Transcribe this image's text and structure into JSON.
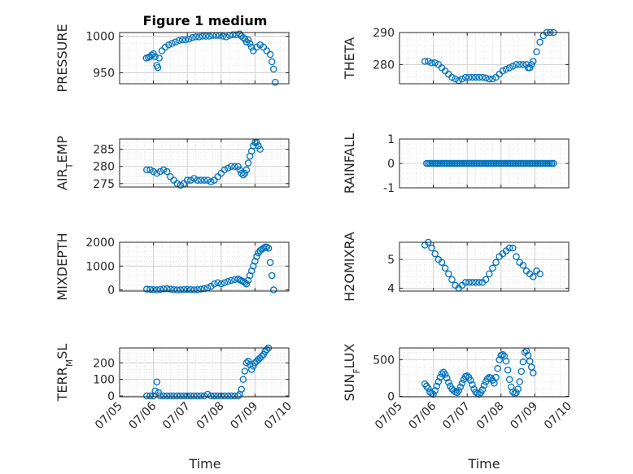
{
  "figure": {
    "title": "Figure 1 medium",
    "x_axis_label": "Time",
    "marker_color": "#0072BD",
    "marker": "open-circle"
  },
  "chart_data": [
    {
      "type": "scatter",
      "name": "pressure",
      "ylabel": "PRESSURE",
      "ylim": [
        935,
        1005
      ],
      "yticks": [
        950,
        1000
      ],
      "xlim": [
        5,
        10
      ],
      "xticks": [],
      "grid": true,
      "points": [
        [
          5.79,
          970
        ],
        [
          5.85,
          971
        ],
        [
          5.9,
          972
        ],
        [
          5.95,
          974
        ],
        [
          6.0,
          976
        ],
        [
          6.05,
          972
        ],
        [
          6.1,
          960
        ],
        [
          6.13,
          957
        ],
        [
          6.17,
          970
        ],
        [
          6.25,
          980
        ],
        [
          6.35,
          985
        ],
        [
          6.45,
          988
        ],
        [
          6.55,
          990
        ],
        [
          6.65,
          992
        ],
        [
          6.75,
          994
        ],
        [
          6.85,
          995
        ],
        [
          6.95,
          995
        ],
        [
          7.05,
          996
        ],
        [
          7.15,
          998
        ],
        [
          7.25,
          999
        ],
        [
          7.35,
          999
        ],
        [
          7.45,
          1000
        ],
        [
          7.55,
          1000
        ],
        [
          7.65,
          1000
        ],
        [
          7.75,
          1001
        ],
        [
          7.85,
          1001
        ],
        [
          7.95,
          1001
        ],
        [
          8.05,
          1000
        ],
        [
          8.15,
          999
        ],
        [
          8.25,
          1001
        ],
        [
          8.35,
          1002
        ],
        [
          8.45,
          1002
        ],
        [
          8.55,
          1003
        ],
        [
          8.6,
          1000
        ],
        [
          8.65,
          998
        ],
        [
          8.7,
          996
        ],
        [
          8.75,
          992
        ],
        [
          8.8,
          995
        ],
        [
          8.85,
          990
        ],
        [
          8.9,
          985
        ],
        [
          8.95,
          980
        ],
        [
          9.05,
          985
        ],
        [
          9.15,
          988
        ],
        [
          9.25,
          985
        ],
        [
          9.35,
          980
        ],
        [
          9.45,
          975
        ],
        [
          9.5,
          965
        ],
        [
          9.55,
          955
        ],
        [
          9.6,
          937
        ]
      ]
    },
    {
      "type": "scatter",
      "name": "theta",
      "ylabel": "THETA",
      "ylim": [
        274,
        290
      ],
      "yticks": [
        280,
        290
      ],
      "xlim": [
        5,
        10
      ],
      "xticks": [],
      "grid": true,
      "points": [
        [
          5.75,
          281
        ],
        [
          5.85,
          281
        ],
        [
          5.95,
          280.5
        ],
        [
          6.05,
          280.5
        ],
        [
          6.15,
          280
        ],
        [
          6.25,
          279
        ],
        [
          6.35,
          278
        ],
        [
          6.45,
          277
        ],
        [
          6.55,
          276
        ],
        [
          6.65,
          275.5
        ],
        [
          6.75,
          275
        ],
        [
          6.85,
          275.5
        ],
        [
          6.95,
          276
        ],
        [
          7.05,
          276
        ],
        [
          7.15,
          276
        ],
        [
          7.25,
          276
        ],
        [
          7.35,
          276
        ],
        [
          7.45,
          276
        ],
        [
          7.55,
          275.8
        ],
        [
          7.65,
          275.5
        ],
        [
          7.75,
          275.5
        ],
        [
          7.85,
          276
        ],
        [
          7.95,
          277
        ],
        [
          8.05,
          278
        ],
        [
          8.15,
          278.5
        ],
        [
          8.25,
          279
        ],
        [
          8.35,
          279.5
        ],
        [
          8.45,
          280
        ],
        [
          8.55,
          280
        ],
        [
          8.65,
          280
        ],
        [
          8.75,
          280
        ],
        [
          8.8,
          279
        ],
        [
          8.85,
          279
        ],
        [
          8.9,
          280
        ],
        [
          8.95,
          281
        ],
        [
          9.05,
          284
        ],
        [
          9.15,
          287
        ],
        [
          9.25,
          289
        ],
        [
          9.35,
          290
        ],
        [
          9.45,
          290
        ],
        [
          9.55,
          290
        ]
      ]
    },
    {
      "type": "scatter",
      "name": "air-temp",
      "ylabel": "AIR_TEMP",
      "ylim": [
        274,
        288
      ],
      "yticks": [
        275,
        280,
        285
      ],
      "xlim": [
        5,
        10
      ],
      "xticks": [],
      "grid": true,
      "points": [
        [
          5.8,
          279
        ],
        [
          5.9,
          279
        ],
        [
          6.0,
          278.5
        ],
        [
          6.1,
          278
        ],
        [
          6.2,
          278.5
        ],
        [
          6.3,
          279
        ],
        [
          6.4,
          278.5
        ],
        [
          6.5,
          277
        ],
        [
          6.6,
          276
        ],
        [
          6.7,
          275
        ],
        [
          6.8,
          274.5
        ],
        [
          6.9,
          275
        ],
        [
          7.0,
          276
        ],
        [
          7.1,
          276
        ],
        [
          7.2,
          276.5
        ],
        [
          7.3,
          276
        ],
        [
          7.4,
          276
        ],
        [
          7.5,
          276
        ],
        [
          7.6,
          276
        ],
        [
          7.7,
          275.5
        ],
        [
          7.8,
          276
        ],
        [
          7.9,
          277
        ],
        [
          8.0,
          278
        ],
        [
          8.1,
          279
        ],
        [
          8.2,
          279.5
        ],
        [
          8.3,
          280
        ],
        [
          8.4,
          280
        ],
        [
          8.5,
          280
        ],
        [
          8.55,
          279
        ],
        [
          8.6,
          278
        ],
        [
          8.65,
          277.5
        ],
        [
          8.7,
          278
        ],
        [
          8.75,
          279
        ],
        [
          8.8,
          281
        ],
        [
          8.85,
          283
        ],
        [
          8.9,
          284.5
        ],
        [
          8.95,
          286
        ],
        [
          9.0,
          287
        ],
        [
          9.05,
          287
        ],
        [
          9.1,
          286
        ],
        [
          9.15,
          285
        ]
      ]
    },
    {
      "type": "scatter",
      "name": "rainfall",
      "ylabel": "RAINFALL",
      "ylim": [
        -1,
        1
      ],
      "yticks": [
        -1,
        0,
        1
      ],
      "xlim": [
        5,
        10
      ],
      "xticks": [],
      "grid": true,
      "constant": {
        "x_start": 5.8,
        "x_end": 9.55,
        "step": 0.05,
        "y": 0
      }
    },
    {
      "type": "scatter",
      "name": "mixdepth",
      "ylabel": "MIXDEPTH",
      "ylim": [
        -50,
        2000
      ],
      "yticks": [
        0,
        1000,
        2000
      ],
      "xlim": [
        5,
        10
      ],
      "xticks": [],
      "grid": true,
      "points": [
        [
          5.8,
          30
        ],
        [
          5.9,
          20
        ],
        [
          6.0,
          10
        ],
        [
          6.1,
          0
        ],
        [
          6.2,
          20
        ],
        [
          6.3,
          40
        ],
        [
          6.4,
          50
        ],
        [
          6.5,
          30
        ],
        [
          6.6,
          10
        ],
        [
          6.7,
          0
        ],
        [
          6.8,
          0
        ],
        [
          6.9,
          10
        ],
        [
          7.0,
          20
        ],
        [
          7.1,
          10
        ],
        [
          7.2,
          0
        ],
        [
          7.3,
          10
        ],
        [
          7.4,
          30
        ],
        [
          7.5,
          50
        ],
        [
          7.6,
          80
        ],
        [
          7.7,
          150
        ],
        [
          7.8,
          250
        ],
        [
          7.9,
          300
        ],
        [
          8.0,
          250
        ],
        [
          8.1,
          300
        ],
        [
          8.2,
          350
        ],
        [
          8.3,
          400
        ],
        [
          8.4,
          430
        ],
        [
          8.5,
          460
        ],
        [
          8.55,
          420
        ],
        [
          8.6,
          380
        ],
        [
          8.65,
          350
        ],
        [
          8.7,
          300
        ],
        [
          8.75,
          250
        ],
        [
          8.8,
          400
        ],
        [
          8.85,
          600
        ],
        [
          8.9,
          800
        ],
        [
          8.95,
          1000
        ],
        [
          9.0,
          1200
        ],
        [
          9.05,
          1400
        ],
        [
          9.1,
          1550
        ],
        [
          9.15,
          1650
        ],
        [
          9.2,
          1700
        ],
        [
          9.25,
          1750
        ],
        [
          9.3,
          1800
        ],
        [
          9.35,
          1800
        ],
        [
          9.4,
          1750
        ],
        [
          9.45,
          1150
        ],
        [
          9.5,
          600
        ],
        [
          9.55,
          0
        ]
      ]
    },
    {
      "type": "scatter",
      "name": "h2omixra",
      "ylabel": "H2OMIXRA",
      "ylim": [
        3.9,
        5.6
      ],
      "yticks": [
        4,
        5
      ],
      "xlim": [
        5,
        10
      ],
      "xticks": [],
      "grid": true,
      "points": [
        [
          5.75,
          5.5
        ],
        [
          5.85,
          5.6
        ],
        [
          5.95,
          5.4
        ],
        [
          6.05,
          5.2
        ],
        [
          6.15,
          5.0
        ],
        [
          6.25,
          4.9
        ],
        [
          6.35,
          4.7
        ],
        [
          6.45,
          4.5
        ],
        [
          6.55,
          4.3
        ],
        [
          6.65,
          4.1
        ],
        [
          6.75,
          4.0
        ],
        [
          6.85,
          4.1
        ],
        [
          6.95,
          4.2
        ],
        [
          7.05,
          4.2
        ],
        [
          7.15,
          4.2
        ],
        [
          7.25,
          4.2
        ],
        [
          7.35,
          4.2
        ],
        [
          7.45,
          4.2
        ],
        [
          7.55,
          4.3
        ],
        [
          7.65,
          4.5
        ],
        [
          7.75,
          4.7
        ],
        [
          7.85,
          4.9
        ],
        [
          7.95,
          5.1
        ],
        [
          8.05,
          5.2
        ],
        [
          8.15,
          5.3
        ],
        [
          8.25,
          5.4
        ],
        [
          8.35,
          5.4
        ],
        [
          8.45,
          5.1
        ],
        [
          8.55,
          4.9
        ],
        [
          8.65,
          4.8
        ],
        [
          8.75,
          4.6
        ],
        [
          8.85,
          4.5
        ],
        [
          8.95,
          4.4
        ],
        [
          9.05,
          4.6
        ],
        [
          9.15,
          4.5
        ]
      ]
    },
    {
      "type": "scatter",
      "name": "terr-msl",
      "ylabel": "TERR_MSL",
      "ylim": [
        -5,
        290
      ],
      "yticks": [
        0,
        100,
        200
      ],
      "xlim": [
        5,
        10
      ],
      "xticks": [
        "07/05",
        "07/06",
        "07/07",
        "07/08",
        "07/09",
        "07/10"
      ],
      "xticks_values": [
        5,
        6,
        7,
        8,
        9,
        10
      ],
      "xlabel": "Time",
      "grid": true,
      "points": [
        [
          5.8,
          0
        ],
        [
          5.9,
          0
        ],
        [
          6.0,
          0
        ],
        [
          6.05,
          30
        ],
        [
          6.1,
          85
        ],
        [
          6.15,
          20
        ],
        [
          6.2,
          0
        ],
        [
          6.3,
          0
        ],
        [
          6.4,
          0
        ],
        [
          6.5,
          0
        ],
        [
          6.6,
          0
        ],
        [
          6.7,
          0
        ],
        [
          6.8,
          0
        ],
        [
          6.9,
          0
        ],
        [
          7.0,
          0
        ],
        [
          7.1,
          0
        ],
        [
          7.2,
          0
        ],
        [
          7.3,
          0
        ],
        [
          7.4,
          0
        ],
        [
          7.5,
          0
        ],
        [
          7.6,
          10
        ],
        [
          7.7,
          0
        ],
        [
          7.8,
          0
        ],
        [
          7.9,
          0
        ],
        [
          8.0,
          0
        ],
        [
          8.1,
          0
        ],
        [
          8.2,
          0
        ],
        [
          8.3,
          0
        ],
        [
          8.4,
          0
        ],
        [
          8.5,
          0
        ],
        [
          8.55,
          10
        ],
        [
          8.6,
          40
        ],
        [
          8.65,
          100
        ],
        [
          8.7,
          150
        ],
        [
          8.75,
          200
        ],
        [
          8.8,
          210
        ],
        [
          8.85,
          190
        ],
        [
          8.9,
          160
        ],
        [
          8.95,
          180
        ],
        [
          9.0,
          200
        ],
        [
          9.05,
          210
        ],
        [
          9.1,
          220
        ],
        [
          9.15,
          230
        ],
        [
          9.2,
          240
        ],
        [
          9.25,
          250
        ],
        [
          9.3,
          270
        ],
        [
          9.35,
          280
        ],
        [
          9.4,
          290
        ]
      ]
    },
    {
      "type": "scatter",
      "name": "sun-flux",
      "ylabel": "SUN_FLUX",
      "ylim": [
        -5,
        660
      ],
      "yticks": [
        0,
        500
      ],
      "xlim": [
        5,
        10
      ],
      "xticks": [
        "07/05",
        "07/06",
        "07/07",
        "07/08",
        "07/09",
        "07/10"
      ],
      "xticks_values": [
        5,
        6,
        7,
        8,
        9,
        10
      ],
      "xlabel": "Time",
      "grid": true,
      "points": [
        [
          5.75,
          170
        ],
        [
          5.8,
          140
        ],
        [
          5.85,
          110
        ],
        [
          5.9,
          60
        ],
        [
          5.95,
          40
        ],
        [
          6.0,
          30
        ],
        [
          6.05,
          80
        ],
        [
          6.1,
          140
        ],
        [
          6.15,
          200
        ],
        [
          6.2,
          260
        ],
        [
          6.25,
          310
        ],
        [
          6.3,
          330
        ],
        [
          6.35,
          300
        ],
        [
          6.4,
          250
        ],
        [
          6.45,
          190
        ],
        [
          6.5,
          140
        ],
        [
          6.55,
          100
        ],
        [
          6.6,
          80
        ],
        [
          6.65,
          60
        ],
        [
          6.7,
          50
        ],
        [
          6.75,
          80
        ],
        [
          6.8,
          130
        ],
        [
          6.85,
          180
        ],
        [
          6.9,
          230
        ],
        [
          6.95,
          270
        ],
        [
          7.0,
          280
        ],
        [
          7.05,
          260
        ],
        [
          7.1,
          220
        ],
        [
          7.15,
          160
        ],
        [
          7.2,
          100
        ],
        [
          7.25,
          60
        ],
        [
          7.3,
          40
        ],
        [
          7.35,
          30
        ],
        [
          7.4,
          50
        ],
        [
          7.45,
          90
        ],
        [
          7.5,
          150
        ],
        [
          7.55,
          200
        ],
        [
          7.6,
          240
        ],
        [
          7.65,
          260
        ],
        [
          7.7,
          250
        ],
        [
          7.75,
          220
        ],
        [
          7.8,
          180
        ],
        [
          7.85,
          260
        ],
        [
          7.9,
          380
        ],
        [
          7.95,
          500
        ],
        [
          8.0,
          560
        ],
        [
          8.05,
          570
        ],
        [
          8.1,
          550
        ],
        [
          8.15,
          480
        ],
        [
          8.2,
          360
        ],
        [
          8.25,
          230
        ],
        [
          8.3,
          130
        ],
        [
          8.35,
          60
        ],
        [
          8.4,
          40
        ],
        [
          8.45,
          50
        ],
        [
          8.5,
          100
        ],
        [
          8.55,
          200
        ],
        [
          8.6,
          340
        ],
        [
          8.65,
          470
        ],
        [
          8.7,
          600
        ],
        [
          8.75,
          620
        ],
        [
          8.8,
          560
        ],
        [
          8.85,
          480
        ],
        [
          8.9,
          400
        ],
        [
          8.95,
          320
        ]
      ]
    }
  ]
}
